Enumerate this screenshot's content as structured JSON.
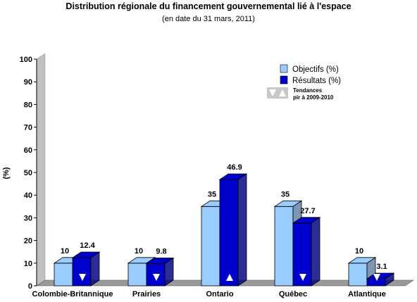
{
  "title": "Distribution régionale du financement gouvernemental lié à l'espace",
  "subtitle": "(en date du 31 mars, 2011)",
  "colors": {
    "objectifs": "#99ccff",
    "resultats": "#0000cc",
    "wall": "#c0c0c0",
    "floor": "#9a9a9a"
  },
  "chart_data": {
    "type": "bar",
    "categories": [
      "Colombie-Britannique",
      "Prairies",
      "Ontario",
      "Québec",
      "Atlantique"
    ],
    "series": [
      {
        "name": "Objectifs (%)",
        "values": [
          10,
          10,
          35,
          35,
          10
        ],
        "labels": [
          "10",
          "10",
          "35",
          "35",
          "10"
        ]
      },
      {
        "name": "Résultats (%)",
        "values": [
          12.4,
          9.8,
          46.9,
          27.7,
          3.1
        ],
        "labels": [
          "12.4",
          "9.8",
          "46.9",
          "27.7",
          "3.1"
        ]
      }
    ],
    "trends": [
      "down",
      "down",
      "up",
      "down",
      "down"
    ],
    "trend_legend": [
      "Tendances",
      "pir à 2009-2010"
    ],
    "ylabel": "(%)",
    "xlabel": "",
    "ylim": [
      0,
      100
    ],
    "yticks": [
      "0",
      "10",
      "20",
      "30",
      "40",
      "50",
      "60",
      "70",
      "80",
      "90",
      "100"
    ],
    "legend_position": "top-right",
    "grid": false
  }
}
